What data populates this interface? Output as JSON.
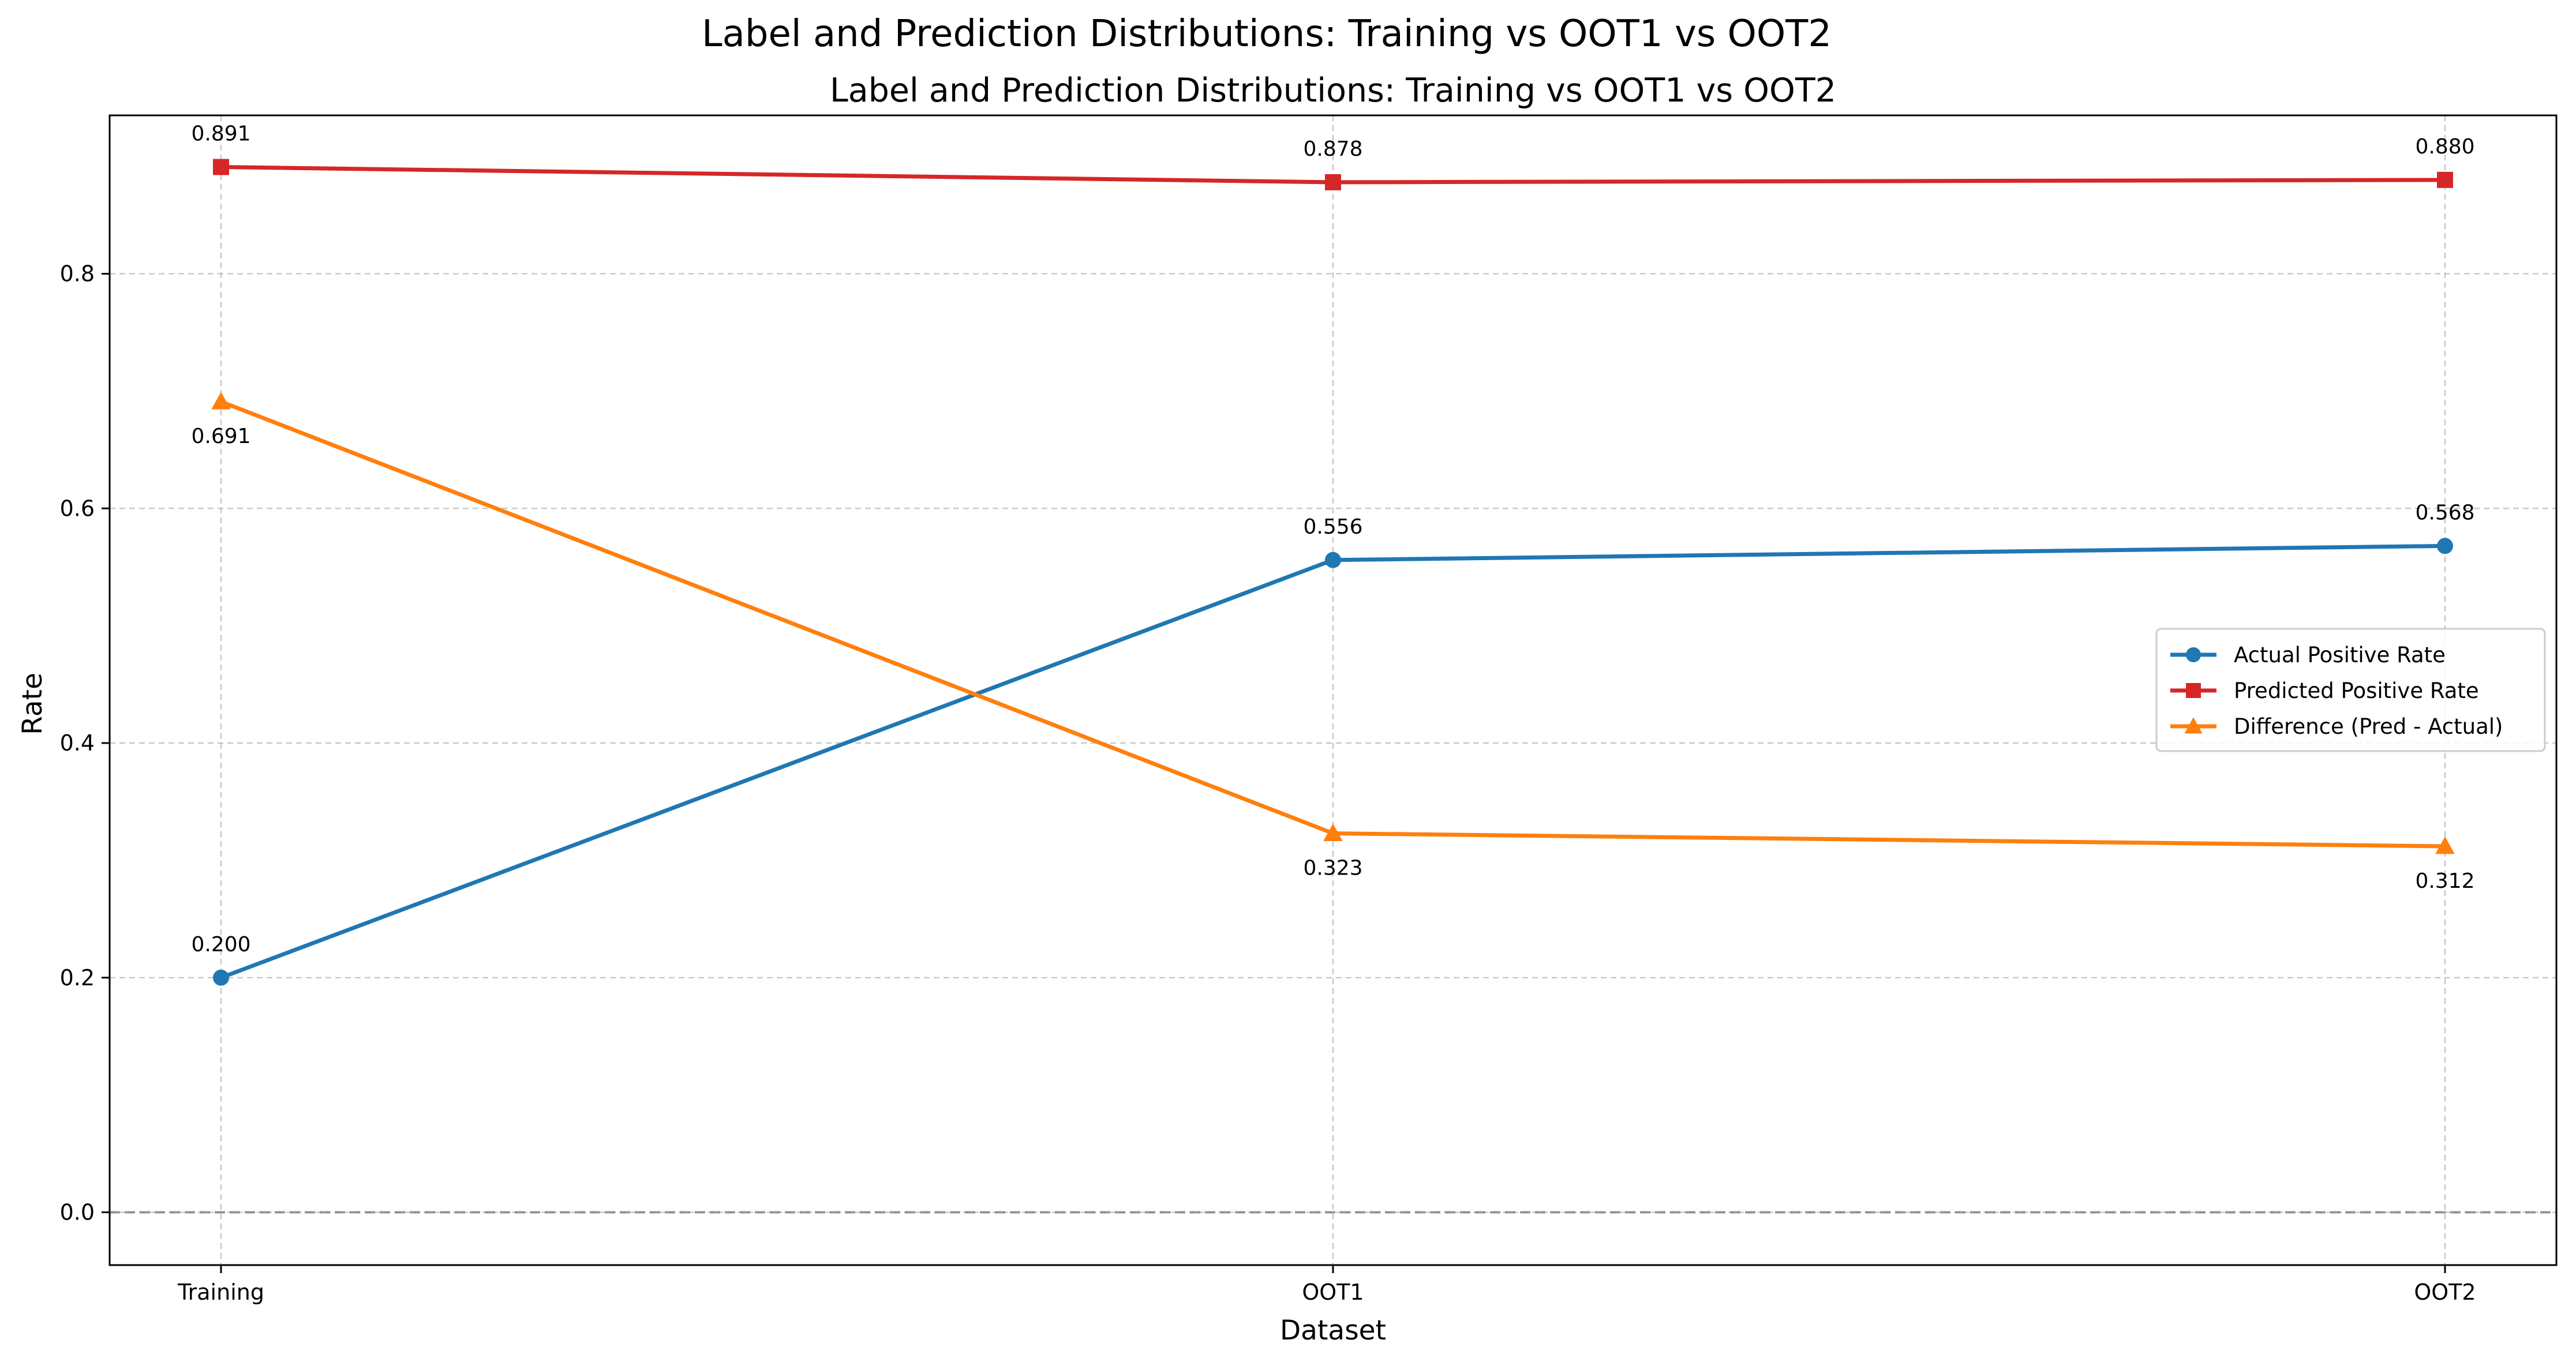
{
  "suptitle": "Label and Prediction Distributions: Training vs OOT1 vs OOT2",
  "chart_data": {
    "type": "line",
    "title": "Label and Prediction Distributions: Training vs OOT1 vs OOT2",
    "xlabel": "Dataset",
    "ylabel": "Rate",
    "categories": [
      "Training",
      "OOT1",
      "OOT2"
    ],
    "ylim": [
      -0.045,
      0.935
    ],
    "yticks": [
      0.0,
      0.2,
      0.4,
      0.6,
      0.8
    ],
    "ytick_labels": [
      "0.0",
      "0.2",
      "0.4",
      "0.6",
      "0.8"
    ],
    "grid": true,
    "reference_line": 0.0,
    "legend_position": "center-right",
    "series": [
      {
        "name": "Actual Positive Rate",
        "values": [
          0.2,
          0.556,
          0.568
        ],
        "labels": [
          "0.200",
          "0.556",
          "0.568"
        ],
        "color": "#1f77b4",
        "marker": "circle",
        "label_position": "above"
      },
      {
        "name": "Predicted Positive Rate",
        "values": [
          0.891,
          0.878,
          0.88
        ],
        "labels": [
          "0.891",
          "0.878",
          "0.880"
        ],
        "color": "#d62728",
        "marker": "square",
        "label_position": "above"
      },
      {
        "name": "Difference (Pred - Actual)",
        "values": [
          0.691,
          0.323,
          0.312
        ],
        "labels": [
          "0.691",
          "0.323",
          "0.312"
        ],
        "color": "#ff7f0e",
        "marker": "triangle",
        "label_position": "below"
      }
    ]
  }
}
